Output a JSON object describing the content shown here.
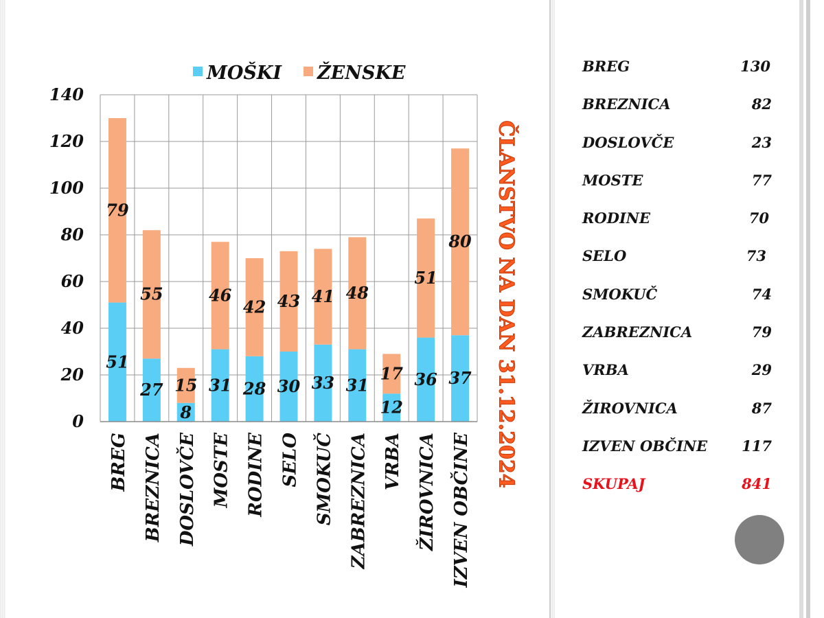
{
  "title": "ČLANSTVO NA DAN 31.12.2024",
  "chart_data": {
    "type": "bar",
    "stacked": true,
    "categories": [
      "BREG",
      "BREZNICA",
      "DOSLOVČE",
      "MOSTE",
      "RODINE",
      "SELO",
      "SMOKUČ",
      "ZABREZNICA",
      "VRBA",
      "ŽIROVNICA",
      "IZVEN OBČINE"
    ],
    "series": [
      {
        "name": "MOŠKI",
        "color": "#5bcef5",
        "values": [
          51,
          27,
          8,
          31,
          28,
          30,
          33,
          31,
          12,
          36,
          37
        ]
      },
      {
        "name": "ŽENSKE",
        "color": "#f7ab7e",
        "values": [
          79,
          55,
          15,
          46,
          42,
          43,
          41,
          48,
          17,
          51,
          80
        ]
      }
    ],
    "yticks": [
      0,
      20,
      40,
      60,
      80,
      100,
      120,
      140
    ],
    "ylim": [
      0,
      140
    ],
    "legend_position": "top",
    "grid": true
  },
  "summary": {
    "rows": [
      {
        "label": "BREG",
        "value": "130"
      },
      {
        "label": "BREZNICA",
        "value": "82"
      },
      {
        "label": "DOSLOVČE",
        "value": "23"
      },
      {
        "label": "MOSTE",
        "value": "77"
      },
      {
        "label": "RODINE",
        "value": "70"
      },
      {
        "label": "SELO",
        "value": "73"
      },
      {
        "label": "SMOKUČ",
        "value": "74"
      },
      {
        "label": "ZABREZNICA",
        "value": "79"
      },
      {
        "label": "VRBA",
        "value": "29"
      },
      {
        "label": "ŽIROVNICA",
        "value": "87"
      },
      {
        "label": "IZVEN OBČINE",
        "value": "117"
      }
    ],
    "total": {
      "label": "SKUPAJ",
      "value": "841"
    }
  }
}
